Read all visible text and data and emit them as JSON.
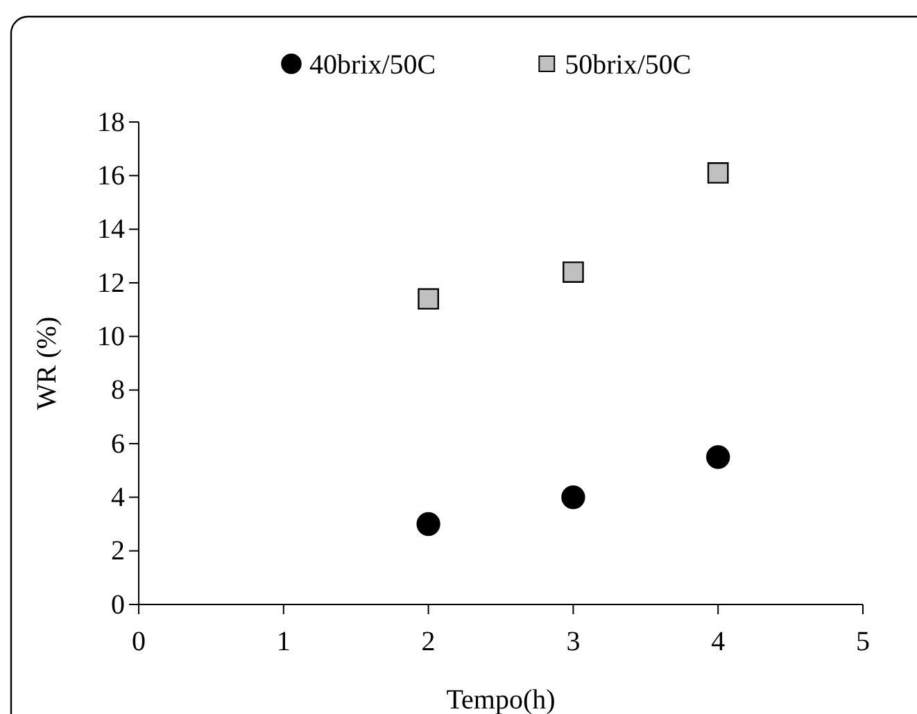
{
  "chart_data": {
    "type": "scatter",
    "xlabel": "Tempo(h)",
    "ylabel": "WR (%)",
    "x": [
      2,
      3,
      4
    ],
    "series": [
      {
        "name": "40brix/50C",
        "color": "#000000",
        "marker": "circle",
        "values": [
          3.0,
          4.0,
          5.5
        ]
      },
      {
        "name": "50brix/50C",
        "color": "#c0c0c0",
        "marker": "square",
        "values": [
          11.4,
          12.4,
          16.1
        ]
      }
    ],
    "xlim": [
      0,
      5
    ],
    "xticks": [
      0,
      1,
      2,
      3,
      4,
      5
    ],
    "ylim": [
      0,
      18
    ],
    "yticks": [
      0,
      2,
      4,
      6,
      8,
      10,
      12,
      14,
      16,
      18
    ],
    "grid": false,
    "legend": "top"
  }
}
